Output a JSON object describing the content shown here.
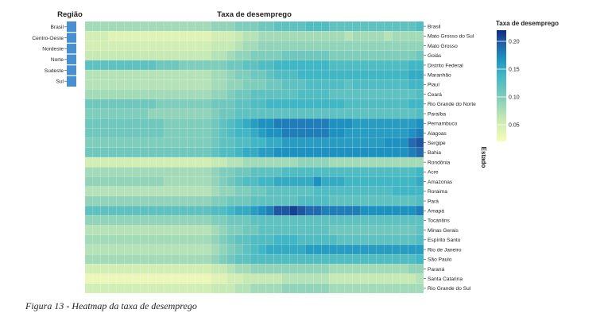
{
  "chart_data": {
    "type": "heatmap",
    "title": "Taxa de desemprego",
    "ylabel": "Estado",
    "region_title": "Região",
    "legend_title": "Taxa de desemprego",
    "legend_ticks": [
      "0.20",
      "0.15",
      "0.10",
      "0.05"
    ],
    "legend_tick_values": [
      0.2,
      0.15,
      0.1,
      0.05
    ],
    "color_range": [
      0.02,
      0.22
    ],
    "colors": {
      "low": "#f7fcb9",
      "mid1": "#c7e9b4",
      "mid2": "#7fcdbb",
      "mid3": "#41b6c4",
      "mid4": "#1d91c0",
      "mid5": "#225ea8",
      "high": "#0c2c84",
      "region_bar": "#4a90d0"
    },
    "regions": [
      "Brasil",
      "Centro-Oeste",
      "Nordeste",
      "Norte",
      "Sudeste",
      "Sul"
    ],
    "states": [
      "Brasil",
      "Mato Grosso do Sul",
      "Mato Grosso",
      "Goiás",
      "Distrito Federal",
      "Maranhão",
      "Piauí",
      "Ceará",
      "Rio Grande do Norte",
      "Paraíba",
      "Pernambuco",
      "Alagoas",
      "Sergipe",
      "Bahia",
      "Rondônia",
      "Acre",
      "Amazonas",
      "Roraima",
      "Pará",
      "Amapá",
      "Tocantins",
      "Minas Gerais",
      "Espírito Santo",
      "Rio de Janeiro",
      "São Paulo",
      "Paraná",
      "Santa Catarina",
      "Rio Grande do Sul"
    ],
    "n_periods": 43,
    "values": [
      [
        0.08,
        0.08,
        0.08,
        0.08,
        0.08,
        0.08,
        0.08,
        0.08,
        0.08,
        0.08,
        0.08,
        0.08,
        0.08,
        0.08,
        0.08,
        0.08,
        0.09,
        0.09,
        0.09,
        0.1,
        0.1,
        0.1,
        0.11,
        0.11,
        0.12,
        0.12,
        0.12,
        0.12,
        0.13,
        0.13,
        0.13,
        0.12,
        0.12,
        0.12,
        0.12,
        0.12,
        0.12,
        0.12,
        0.12,
        0.12,
        0.12,
        0.12,
        0.13
      ],
      [
        0.05,
        0.05,
        0.05,
        0.04,
        0.04,
        0.04,
        0.04,
        0.04,
        0.04,
        0.04,
        0.04,
        0.04,
        0.04,
        0.04,
        0.04,
        0.04,
        0.05,
        0.05,
        0.05,
        0.06,
        0.07,
        0.07,
        0.08,
        0.08,
        0.08,
        0.08,
        0.08,
        0.08,
        0.08,
        0.08,
        0.08,
        0.08,
        0.08,
        0.07,
        0.08,
        0.08,
        0.08,
        0.08,
        0.07,
        0.08,
        0.08,
        0.08,
        0.08
      ],
      [
        0.05,
        0.05,
        0.05,
        0.05,
        0.05,
        0.05,
        0.05,
        0.05,
        0.05,
        0.05,
        0.05,
        0.05,
        0.05,
        0.05,
        0.05,
        0.05,
        0.06,
        0.06,
        0.06,
        0.07,
        0.08,
        0.08,
        0.09,
        0.09,
        0.09,
        0.09,
        0.09,
        0.09,
        0.09,
        0.09,
        0.09,
        0.09,
        0.09,
        0.09,
        0.09,
        0.09,
        0.09,
        0.09,
        0.09,
        0.09,
        0.09,
        0.09,
        0.09
      ],
      [
        0.06,
        0.06,
        0.06,
        0.06,
        0.06,
        0.06,
        0.06,
        0.06,
        0.06,
        0.06,
        0.06,
        0.06,
        0.06,
        0.06,
        0.06,
        0.06,
        0.07,
        0.07,
        0.08,
        0.09,
        0.09,
        0.1,
        0.1,
        0.1,
        0.1,
        0.11,
        0.11,
        0.11,
        0.11,
        0.11,
        0.11,
        0.1,
        0.1,
        0.1,
        0.1,
        0.1,
        0.1,
        0.1,
        0.1,
        0.1,
        0.1,
        0.1,
        0.11
      ],
      [
        0.12,
        0.12,
        0.12,
        0.12,
        0.12,
        0.12,
        0.12,
        0.12,
        0.12,
        0.11,
        0.11,
        0.11,
        0.1,
        0.1,
        0.1,
        0.1,
        0.1,
        0.1,
        0.11,
        0.11,
        0.12,
        0.12,
        0.13,
        0.13,
        0.14,
        0.14,
        0.14,
        0.14,
        0.14,
        0.14,
        0.14,
        0.13,
        0.13,
        0.13,
        0.13,
        0.13,
        0.13,
        0.13,
        0.13,
        0.13,
        0.13,
        0.14,
        0.14
      ],
      [
        0.07,
        0.07,
        0.07,
        0.07,
        0.07,
        0.07,
        0.07,
        0.07,
        0.07,
        0.07,
        0.07,
        0.07,
        0.07,
        0.07,
        0.07,
        0.07,
        0.08,
        0.08,
        0.09,
        0.1,
        0.1,
        0.11,
        0.11,
        0.12,
        0.13,
        0.13,
        0.13,
        0.14,
        0.14,
        0.14,
        0.14,
        0.14,
        0.14,
        0.14,
        0.14,
        0.14,
        0.14,
        0.14,
        0.14,
        0.14,
        0.14,
        0.15,
        0.15
      ],
      [
        0.07,
        0.07,
        0.07,
        0.07,
        0.07,
        0.07,
        0.07,
        0.07,
        0.07,
        0.07,
        0.07,
        0.07,
        0.07,
        0.07,
        0.07,
        0.07,
        0.08,
        0.08,
        0.09,
        0.09,
        0.1,
        0.1,
        0.1,
        0.11,
        0.11,
        0.12,
        0.12,
        0.12,
        0.13,
        0.13,
        0.13,
        0.13,
        0.13,
        0.12,
        0.13,
        0.13,
        0.13,
        0.13,
        0.13,
        0.13,
        0.13,
        0.14,
        0.14
      ],
      [
        0.08,
        0.08,
        0.08,
        0.08,
        0.08,
        0.08,
        0.08,
        0.08,
        0.08,
        0.08,
        0.08,
        0.08,
        0.08,
        0.08,
        0.08,
        0.08,
        0.09,
        0.09,
        0.1,
        0.11,
        0.11,
        0.12,
        0.12,
        0.12,
        0.12,
        0.12,
        0.12,
        0.13,
        0.13,
        0.13,
        0.13,
        0.12,
        0.12,
        0.12,
        0.12,
        0.12,
        0.12,
        0.12,
        0.12,
        0.12,
        0.12,
        0.12,
        0.13
      ],
      [
        0.11,
        0.11,
        0.11,
        0.11,
        0.11,
        0.11,
        0.11,
        0.11,
        0.11,
        0.1,
        0.1,
        0.1,
        0.1,
        0.1,
        0.1,
        0.1,
        0.11,
        0.11,
        0.11,
        0.12,
        0.12,
        0.13,
        0.13,
        0.14,
        0.14,
        0.14,
        0.14,
        0.14,
        0.14,
        0.14,
        0.14,
        0.14,
        0.14,
        0.13,
        0.13,
        0.13,
        0.13,
        0.13,
        0.13,
        0.13,
        0.13,
        0.14,
        0.14
      ],
      [
        0.1,
        0.1,
        0.1,
        0.1,
        0.1,
        0.1,
        0.1,
        0.1,
        0.09,
        0.09,
        0.09,
        0.09,
        0.09,
        0.09,
        0.09,
        0.09,
        0.1,
        0.11,
        0.11,
        0.12,
        0.12,
        0.12,
        0.12,
        0.12,
        0.12,
        0.12,
        0.12,
        0.12,
        0.12,
        0.12,
        0.12,
        0.12,
        0.12,
        0.12,
        0.12,
        0.12,
        0.12,
        0.12,
        0.12,
        0.12,
        0.12,
        0.12,
        0.13
      ],
      [
        0.11,
        0.11,
        0.11,
        0.11,
        0.11,
        0.11,
        0.11,
        0.11,
        0.11,
        0.11,
        0.1,
        0.1,
        0.1,
        0.1,
        0.1,
        0.1,
        0.11,
        0.12,
        0.13,
        0.14,
        0.15,
        0.16,
        0.17,
        0.17,
        0.18,
        0.18,
        0.18,
        0.18,
        0.18,
        0.18,
        0.18,
        0.17,
        0.17,
        0.17,
        0.16,
        0.16,
        0.16,
        0.16,
        0.16,
        0.16,
        0.16,
        0.16,
        0.17
      ],
      [
        0.11,
        0.11,
        0.11,
        0.11,
        0.11,
        0.11,
        0.11,
        0.11,
        0.11,
        0.11,
        0.1,
        0.1,
        0.1,
        0.1,
        0.1,
        0.1,
        0.11,
        0.12,
        0.13,
        0.14,
        0.14,
        0.15,
        0.16,
        0.17,
        0.17,
        0.18,
        0.18,
        0.18,
        0.18,
        0.18,
        0.18,
        0.17,
        0.17,
        0.16,
        0.16,
        0.16,
        0.16,
        0.16,
        0.16,
        0.16,
        0.16,
        0.17,
        0.18
      ],
      [
        0.1,
        0.1,
        0.1,
        0.1,
        0.1,
        0.1,
        0.1,
        0.1,
        0.1,
        0.1,
        0.1,
        0.1,
        0.1,
        0.1,
        0.1,
        0.1,
        0.11,
        0.12,
        0.12,
        0.13,
        0.13,
        0.14,
        0.14,
        0.15,
        0.15,
        0.16,
        0.16,
        0.16,
        0.16,
        0.16,
        0.16,
        0.16,
        0.16,
        0.16,
        0.16,
        0.16,
        0.16,
        0.16,
        0.17,
        0.17,
        0.17,
        0.19,
        0.2
      ],
      [
        0.11,
        0.11,
        0.11,
        0.11,
        0.11,
        0.11,
        0.11,
        0.11,
        0.11,
        0.11,
        0.11,
        0.11,
        0.11,
        0.11,
        0.11,
        0.11,
        0.12,
        0.13,
        0.13,
        0.14,
        0.15,
        0.15,
        0.16,
        0.16,
        0.17,
        0.17,
        0.17,
        0.17,
        0.17,
        0.17,
        0.17,
        0.17,
        0.17,
        0.17,
        0.17,
        0.17,
        0.17,
        0.17,
        0.17,
        0.17,
        0.17,
        0.18,
        0.19
      ],
      [
        0.05,
        0.05,
        0.05,
        0.05,
        0.05,
        0.05,
        0.05,
        0.05,
        0.05,
        0.05,
        0.05,
        0.05,
        0.05,
        0.05,
        0.05,
        0.05,
        0.06,
        0.06,
        0.07,
        0.07,
        0.08,
        0.08,
        0.08,
        0.08,
        0.08,
        0.08,
        0.08,
        0.09,
        0.09,
        0.09,
        0.09,
        0.08,
        0.08,
        0.08,
        0.08,
        0.08,
        0.08,
        0.08,
        0.08,
        0.08,
        0.08,
        0.08,
        0.08
      ],
      [
        0.08,
        0.08,
        0.08,
        0.08,
        0.08,
        0.08,
        0.08,
        0.08,
        0.08,
        0.08,
        0.08,
        0.08,
        0.08,
        0.08,
        0.08,
        0.08,
        0.09,
        0.1,
        0.1,
        0.11,
        0.11,
        0.12,
        0.12,
        0.12,
        0.12,
        0.13,
        0.13,
        0.13,
        0.13,
        0.13,
        0.13,
        0.13,
        0.13,
        0.13,
        0.13,
        0.13,
        0.13,
        0.13,
        0.13,
        0.13,
        0.13,
        0.13,
        0.14
      ],
      [
        0.09,
        0.09,
        0.09,
        0.09,
        0.09,
        0.09,
        0.09,
        0.09,
        0.09,
        0.09,
        0.08,
        0.08,
        0.08,
        0.08,
        0.08,
        0.08,
        0.09,
        0.1,
        0.11,
        0.12,
        0.13,
        0.13,
        0.14,
        0.14,
        0.15,
        0.15,
        0.15,
        0.15,
        0.15,
        0.17,
        0.15,
        0.15,
        0.15,
        0.14,
        0.14,
        0.14,
        0.14,
        0.14,
        0.14,
        0.14,
        0.14,
        0.14,
        0.15
      ],
      [
        0.07,
        0.07,
        0.07,
        0.07,
        0.07,
        0.07,
        0.07,
        0.07,
        0.07,
        0.07,
        0.07,
        0.07,
        0.07,
        0.07,
        0.07,
        0.07,
        0.08,
        0.09,
        0.09,
        0.1,
        0.1,
        0.11,
        0.11,
        0.12,
        0.12,
        0.12,
        0.12,
        0.12,
        0.12,
        0.13,
        0.13,
        0.13,
        0.13,
        0.13,
        0.13,
        0.13,
        0.13,
        0.13,
        0.13,
        0.14,
        0.14,
        0.14,
        0.14
      ],
      [
        0.09,
        0.09,
        0.09,
        0.09,
        0.09,
        0.09,
        0.09,
        0.09,
        0.09,
        0.09,
        0.09,
        0.09,
        0.09,
        0.09,
        0.09,
        0.09,
        0.1,
        0.1,
        0.11,
        0.11,
        0.11,
        0.12,
        0.12,
        0.12,
        0.12,
        0.12,
        0.12,
        0.13,
        0.13,
        0.13,
        0.13,
        0.12,
        0.12,
        0.12,
        0.12,
        0.12,
        0.12,
        0.12,
        0.12,
        0.12,
        0.12,
        0.12,
        0.13
      ],
      [
        0.12,
        0.12,
        0.12,
        0.12,
        0.12,
        0.12,
        0.12,
        0.12,
        0.12,
        0.12,
        0.12,
        0.12,
        0.12,
        0.12,
        0.12,
        0.12,
        0.13,
        0.13,
        0.14,
        0.15,
        0.15,
        0.16,
        0.17,
        0.18,
        0.2,
        0.2,
        0.21,
        0.2,
        0.19,
        0.19,
        0.18,
        0.18,
        0.18,
        0.18,
        0.18,
        0.17,
        0.17,
        0.17,
        0.17,
        0.17,
        0.17,
        0.17,
        0.18
      ],
      [
        0.09,
        0.09,
        0.09,
        0.09,
        0.09,
        0.09,
        0.09,
        0.09,
        0.09,
        0.09,
        0.09,
        0.09,
        0.09,
        0.09,
        0.09,
        0.09,
        0.1,
        0.1,
        0.11,
        0.11,
        0.11,
        0.12,
        0.12,
        0.12,
        0.12,
        0.12,
        0.12,
        0.12,
        0.12,
        0.12,
        0.12,
        0.12,
        0.12,
        0.12,
        0.12,
        0.12,
        0.12,
        0.12,
        0.12,
        0.12,
        0.12,
        0.12,
        0.12
      ],
      [
        0.07,
        0.07,
        0.07,
        0.07,
        0.07,
        0.07,
        0.07,
        0.07,
        0.07,
        0.07,
        0.07,
        0.07,
        0.07,
        0.07,
        0.07,
        0.07,
        0.08,
        0.09,
        0.1,
        0.1,
        0.11,
        0.11,
        0.12,
        0.12,
        0.12,
        0.12,
        0.12,
        0.12,
        0.12,
        0.12,
        0.12,
        0.11,
        0.11,
        0.11,
        0.11,
        0.11,
        0.11,
        0.11,
        0.11,
        0.11,
        0.11,
        0.11,
        0.12
      ],
      [
        0.08,
        0.08,
        0.08,
        0.08,
        0.08,
        0.08,
        0.08,
        0.08,
        0.08,
        0.08,
        0.08,
        0.08,
        0.08,
        0.08,
        0.08,
        0.08,
        0.09,
        0.1,
        0.11,
        0.12,
        0.12,
        0.13,
        0.13,
        0.13,
        0.14,
        0.14,
        0.14,
        0.13,
        0.13,
        0.13,
        0.13,
        0.13,
        0.12,
        0.12,
        0.12,
        0.12,
        0.12,
        0.12,
        0.12,
        0.12,
        0.12,
        0.12,
        0.13
      ],
      [
        0.07,
        0.07,
        0.07,
        0.07,
        0.07,
        0.07,
        0.07,
        0.07,
        0.07,
        0.07,
        0.07,
        0.07,
        0.07,
        0.07,
        0.07,
        0.07,
        0.08,
        0.09,
        0.1,
        0.11,
        0.12,
        0.13,
        0.14,
        0.15,
        0.15,
        0.15,
        0.15,
        0.15,
        0.16,
        0.16,
        0.16,
        0.16,
        0.16,
        0.16,
        0.16,
        0.16,
        0.16,
        0.16,
        0.16,
        0.16,
        0.16,
        0.16,
        0.16
      ],
      [
        0.08,
        0.08,
        0.08,
        0.08,
        0.08,
        0.08,
        0.08,
        0.08,
        0.08,
        0.08,
        0.08,
        0.08,
        0.08,
        0.08,
        0.08,
        0.08,
        0.09,
        0.1,
        0.11,
        0.12,
        0.12,
        0.13,
        0.13,
        0.13,
        0.13,
        0.13,
        0.13,
        0.13,
        0.13,
        0.13,
        0.13,
        0.13,
        0.13,
        0.13,
        0.13,
        0.13,
        0.13,
        0.13,
        0.13,
        0.13,
        0.13,
        0.13,
        0.14
      ],
      [
        0.05,
        0.05,
        0.05,
        0.05,
        0.05,
        0.05,
        0.05,
        0.05,
        0.05,
        0.05,
        0.05,
        0.05,
        0.05,
        0.05,
        0.05,
        0.05,
        0.06,
        0.06,
        0.07,
        0.08,
        0.08,
        0.09,
        0.09,
        0.09,
        0.09,
        0.09,
        0.09,
        0.09,
        0.09,
        0.09,
        0.09,
        0.08,
        0.08,
        0.08,
        0.08,
        0.08,
        0.08,
        0.08,
        0.08,
        0.08,
        0.08,
        0.09,
        0.09
      ],
      [
        0.03,
        0.03,
        0.03,
        0.03,
        0.03,
        0.03,
        0.03,
        0.03,
        0.03,
        0.03,
        0.03,
        0.03,
        0.03,
        0.03,
        0.03,
        0.03,
        0.04,
        0.04,
        0.05,
        0.05,
        0.06,
        0.06,
        0.06,
        0.06,
        0.06,
        0.07,
        0.07,
        0.07,
        0.07,
        0.07,
        0.07,
        0.06,
        0.06,
        0.06,
        0.06,
        0.06,
        0.06,
        0.06,
        0.06,
        0.06,
        0.06,
        0.06,
        0.07
      ],
      [
        0.05,
        0.05,
        0.05,
        0.05,
        0.05,
        0.05,
        0.05,
        0.05,
        0.05,
        0.05,
        0.05,
        0.05,
        0.05,
        0.05,
        0.05,
        0.05,
        0.06,
        0.06,
        0.06,
        0.07,
        0.07,
        0.08,
        0.08,
        0.08,
        0.08,
        0.09,
        0.09,
        0.09,
        0.09,
        0.09,
        0.09,
        0.08,
        0.08,
        0.08,
        0.08,
        0.08,
        0.08,
        0.08,
        0.08,
        0.08,
        0.08,
        0.08,
        0.08
      ]
    ]
  },
  "caption": "Figura 13 - Heatmap da taxa de desemprego"
}
